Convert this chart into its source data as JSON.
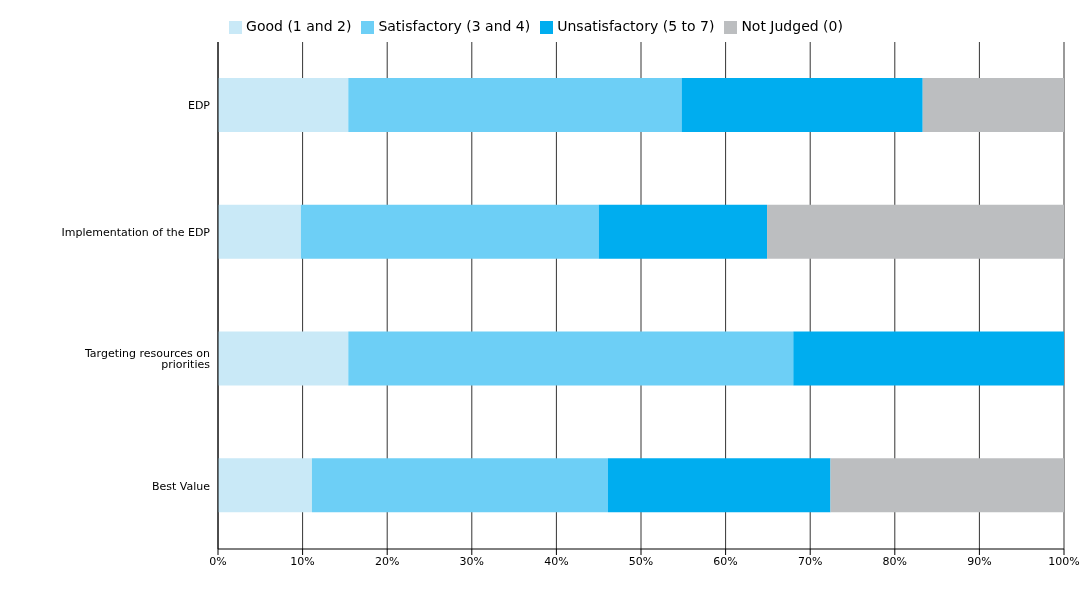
{
  "chart_data": {
    "type": "bar",
    "orientation": "horizontal",
    "stacked": true,
    "categories": [
      "EDP",
      "Implementation of the EDP",
      "Targeting resources on priorities",
      "Best Value"
    ],
    "series": [
      {
        "name": "Good (1 and 2)",
        "color": "#c9e9f7",
        "values": [
          15.4,
          9.8,
          15.4,
          11.1
        ]
      },
      {
        "name": "Satisfactory (3 and 4)",
        "color": "#6dcff6",
        "values": [
          39.4,
          35.2,
          52.6,
          35.0
        ]
      },
      {
        "name": "Unsatisfactory (5 to 7)",
        "color": "#00adef",
        "values": [
          28.5,
          19.9,
          32.0,
          26.3
        ]
      },
      {
        "name": "Not Judged (0)",
        "color": "#bcbec0",
        "values": [
          16.7,
          35.1,
          null,
          27.6
        ]
      }
    ],
    "xlim": [
      0,
      100
    ],
    "xticks": [
      {
        "value": 0,
        "label": "0%"
      },
      {
        "value": 10,
        "label": "10%"
      },
      {
        "value": 20,
        "label": "20%"
      },
      {
        "value": 30,
        "label": "30%"
      },
      {
        "value": 40,
        "label": "40%"
      },
      {
        "value": 50,
        "label": "50%"
      },
      {
        "value": 60,
        "label": "60%"
      },
      {
        "value": 70,
        "label": "70%"
      },
      {
        "value": 80,
        "label": "80%"
      },
      {
        "value": 90,
        "label": "90%"
      },
      {
        "value": 100,
        "label": "100%"
      }
    ],
    "grid": "x",
    "legend": "top"
  }
}
